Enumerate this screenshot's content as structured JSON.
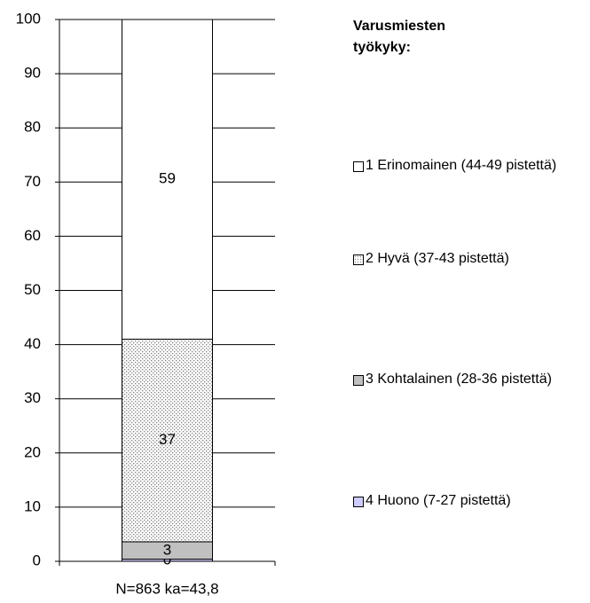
{
  "chart_data": {
    "type": "stacked-bar",
    "categories": [
      "N=863 ka=43,8"
    ],
    "legend_title": "Varusmiesten työkyky:",
    "series": [
      {
        "name": "1 Erinomainen (44-49 pistettä)",
        "color": "#ffffff",
        "values": [
          59
        ]
      },
      {
        "name": "2 Hyvä (37-43 pistettä)",
        "color": "#ffffff",
        "pattern": "dotted",
        "values": [
          37.4
        ],
        "value_labels": [
          "37"
        ]
      },
      {
        "name": "3 Kohtalainen (28-36 pistettä)",
        "color": "#c0c0c0",
        "values": [
          3.2
        ],
        "value_labels": [
          "3"
        ]
      },
      {
        "name": "4 Huono (7-27 pistettä)",
        "color": "#ccccff",
        "values": [
          0.4
        ],
        "value_labels": [
          "0"
        ]
      }
    ],
    "ylim": [
      0,
      100
    ],
    "yticks": [
      0,
      10,
      20,
      30,
      40,
      50,
      60,
      70,
      80,
      90,
      100
    ],
    "grid": true,
    "legend": "right"
  }
}
